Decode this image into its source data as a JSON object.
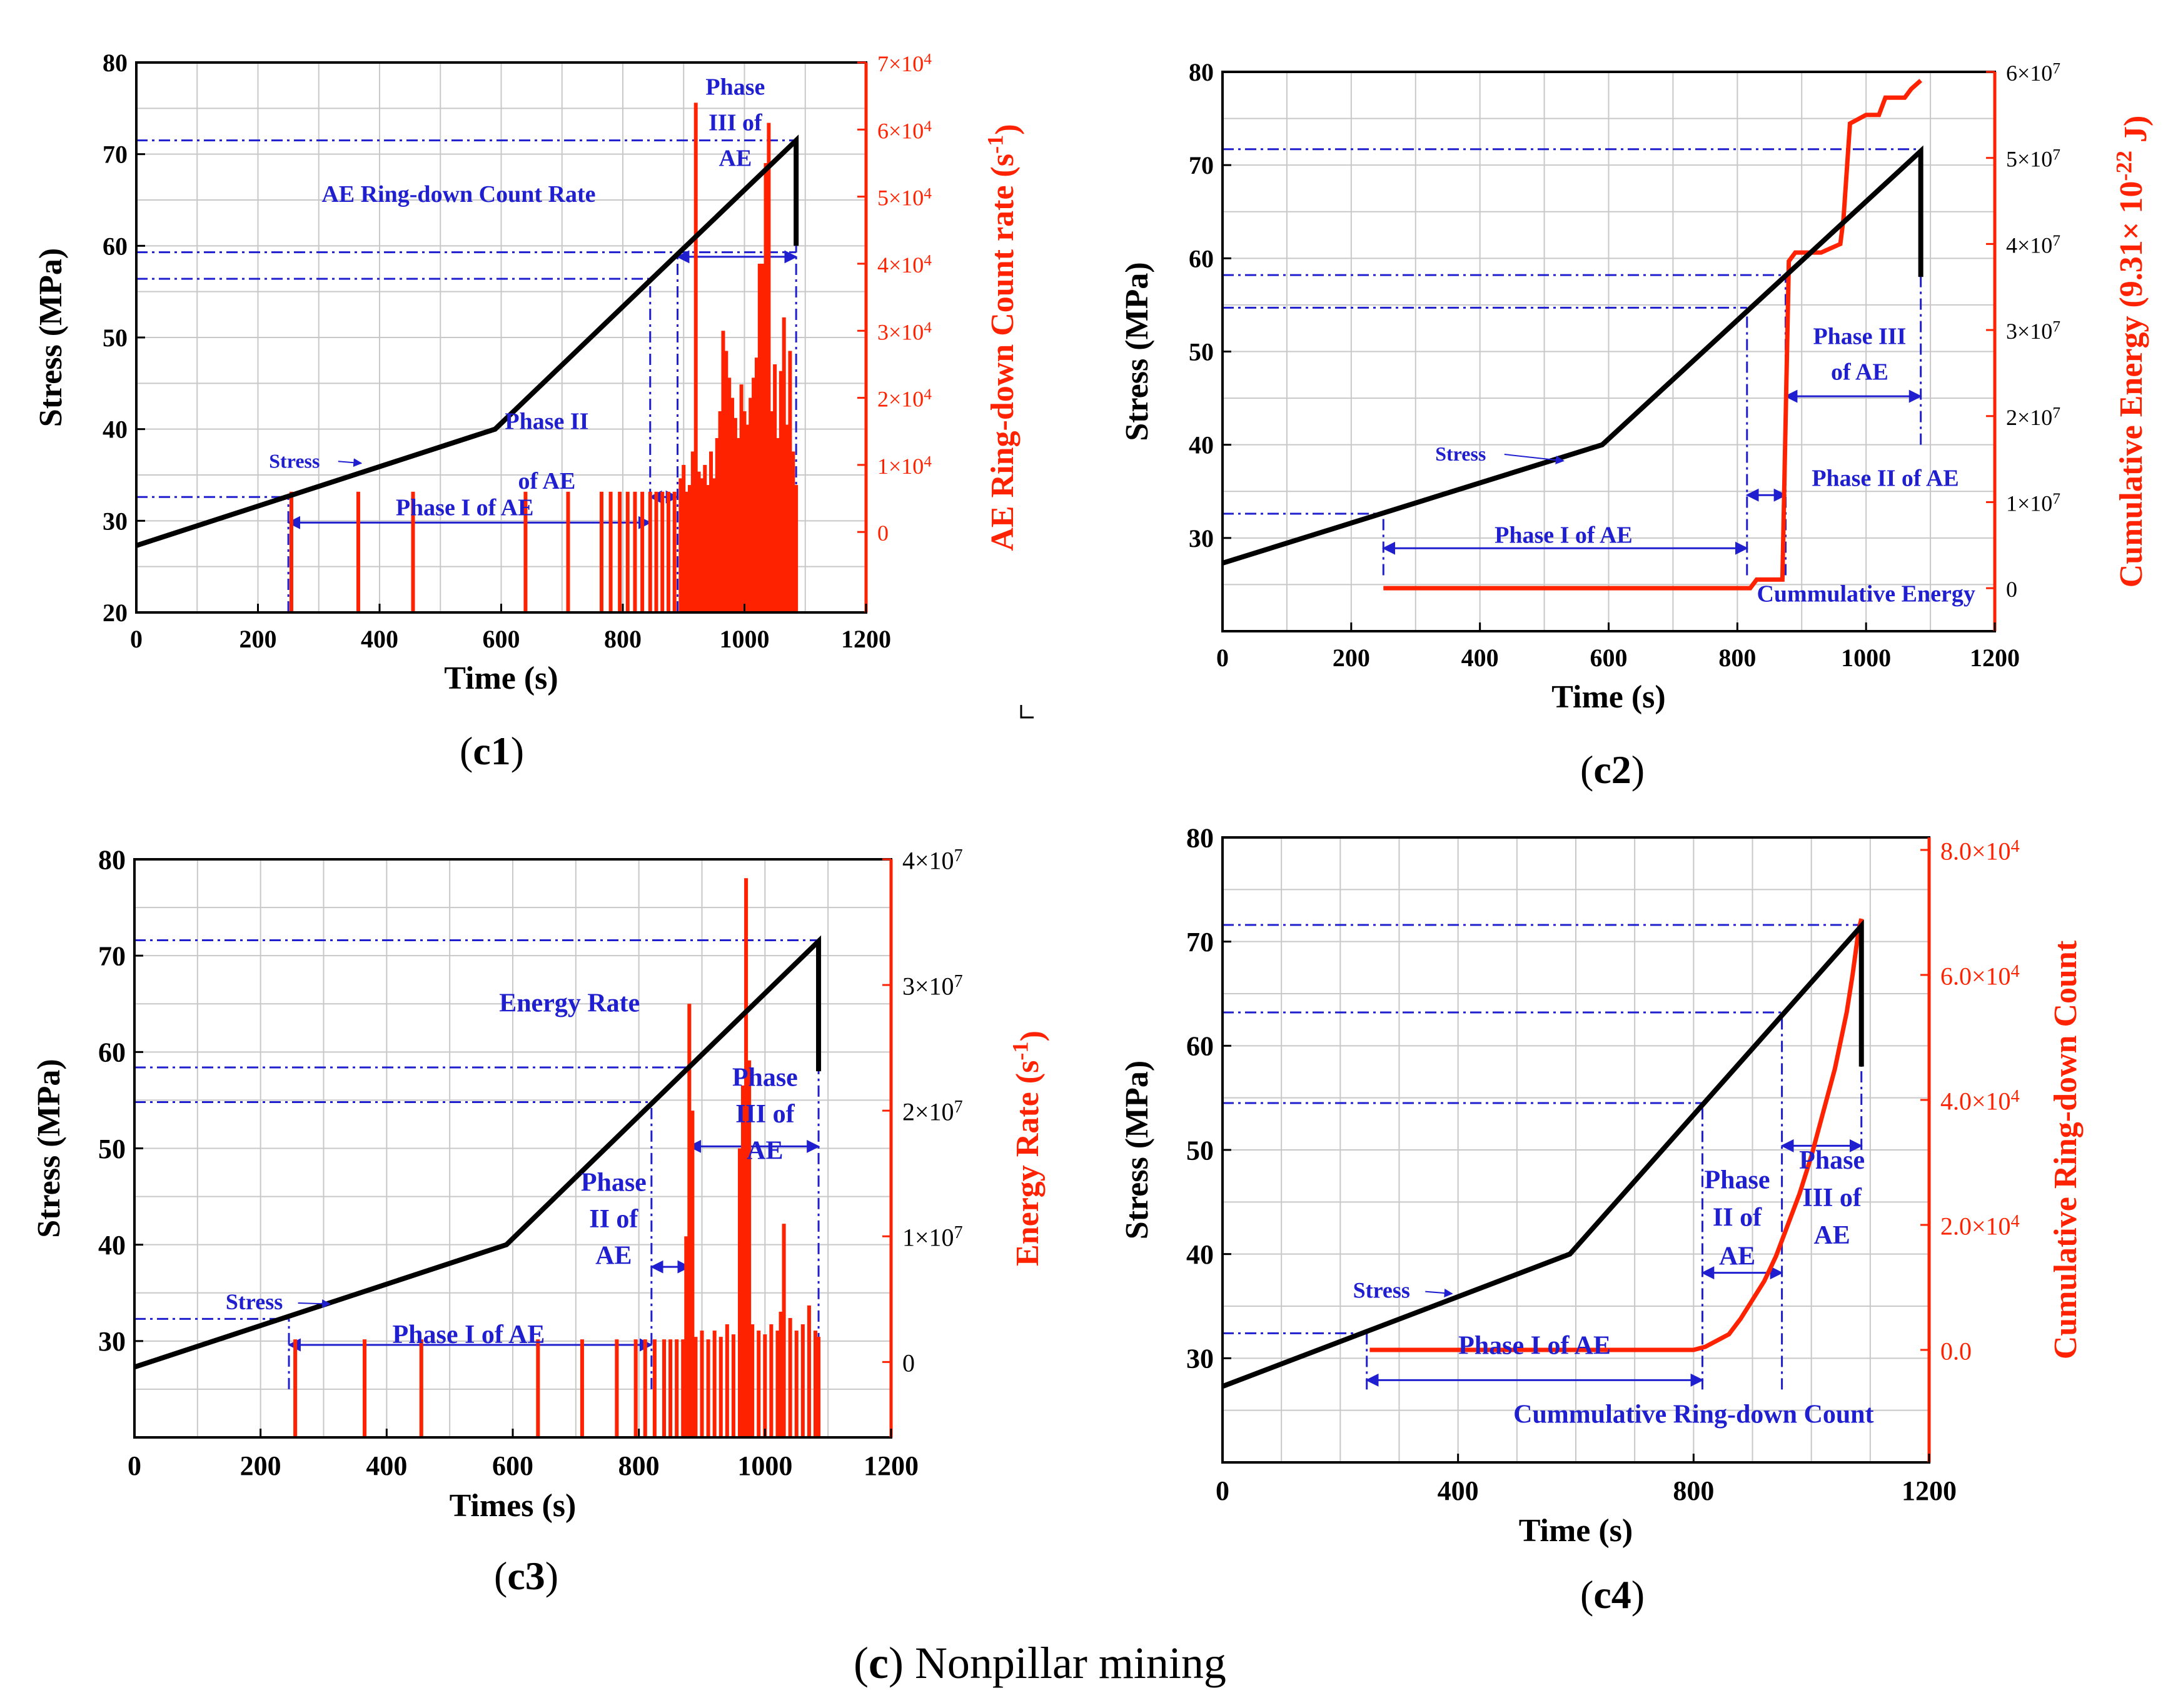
{
  "figure": {
    "caption_letter": "c",
    "caption_text": " Nonpillar mining",
    "panel_labels": [
      {
        "letter": "c1"
      },
      {
        "letter": "c2"
      },
      {
        "letter": "c3"
      },
      {
        "letter": "c4"
      }
    ]
  },
  "colors": {
    "stress": "#000000",
    "ae": "#ff2200",
    "annot": "#1f1fd0",
    "grid": "#c8c8c8"
  },
  "chart_data": [
    {
      "id": "c1",
      "type": "bar+line",
      "xlabel": "Time (s)",
      "ylabel": "Stress (MPa)",
      "y2label": "AE Ring-down Count rate (s^-1)",
      "xlim": [
        0,
        1200
      ],
      "ylim": [
        20,
        80
      ],
      "y2lim": [
        -12000,
        70000
      ],
      "xticks": [
        "0",
        "200",
        "400",
        "600",
        "800",
        "1000",
        "1200"
      ],
      "yticks": [
        "20",
        "30",
        "40",
        "50",
        "60",
        "70",
        "80"
      ],
      "y2ticks": [
        "0",
        "1×10^4",
        "2×10^4",
        "3×10^4",
        "4×10^4",
        "5×10^4",
        "6×10^4",
        "7×10^4"
      ],
      "stress": {
        "t": [
          0,
          590,
          1085,
          1085
        ],
        "s": [
          27.3,
          40,
          71.5,
          60
        ]
      },
      "ae_spikes": [
        [
          255,
          6000
        ],
        [
          365,
          6000
        ],
        [
          455,
          6000
        ],
        [
          640,
          6000
        ],
        [
          710,
          6000
        ],
        [
          765,
          6000
        ],
        [
          780,
          6000
        ],
        [
          795,
          6000
        ],
        [
          808,
          6000
        ],
        [
          820,
          6000
        ],
        [
          832,
          6000
        ],
        [
          845,
          6000
        ],
        [
          855,
          6000
        ],
        [
          865,
          6000
        ],
        [
          875,
          6000
        ],
        [
          885,
          6000
        ],
        [
          895,
          8000
        ],
        [
          900,
          10000
        ],
        [
          905,
          6000
        ],
        [
          910,
          7000
        ],
        [
          915,
          12000
        ],
        [
          920,
          64000
        ],
        [
          925,
          9000
        ],
        [
          930,
          8000
        ],
        [
          935,
          10000
        ],
        [
          940,
          7000
        ],
        [
          945,
          12000
        ],
        [
          950,
          8000
        ],
        [
          955,
          14000
        ],
        [
          960,
          18000
        ],
        [
          965,
          30000
        ],
        [
          970,
          27000
        ],
        [
          975,
          23000
        ],
        [
          980,
          20000
        ],
        [
          985,
          17000
        ],
        [
          990,
          14000
        ],
        [
          995,
          22000
        ],
        [
          1000,
          18000
        ],
        [
          1005,
          16000
        ],
        [
          1010,
          20000
        ],
        [
          1015,
          23000
        ],
        [
          1020,
          26000
        ],
        [
          1025,
          40000
        ],
        [
          1030,
          40000
        ],
        [
          1035,
          55000
        ],
        [
          1040,
          61000
        ],
        [
          1045,
          18000
        ],
        [
          1050,
          25000
        ],
        [
          1055,
          14000
        ],
        [
          1060,
          24000
        ],
        [
          1065,
          32000
        ],
        [
          1070,
          16000
        ],
        [
          1075,
          27000
        ],
        [
          1080,
          12000
        ],
        [
          1085,
          7000
        ]
      ],
      "annotations": {
        "stress_label": "Stress",
        "series_label": "AE Ring-down Count Rate",
        "phase1": "Phase I of AE",
        "phase2": [
          "Phase II",
          "of AE"
        ],
        "phase3": [
          "Phase",
          "III of",
          "AE"
        ]
      }
    },
    {
      "id": "c2",
      "type": "line",
      "xlabel": "Time (s)",
      "ylabel": "Stress (MPa)",
      "y2label": "Cumulative Energy (9.31× 10^-22 J)",
      "xlim": [
        0,
        1200
      ],
      "ylim": [
        20,
        80
      ],
      "y2lim": [
        -5000000,
        60000000
      ],
      "xticks": [
        "0",
        "200",
        "400",
        "600",
        "800",
        "1000",
        "1200"
      ],
      "yticks": [
        "30",
        "40",
        "50",
        "60",
        "70",
        "80"
      ],
      "y2ticks": [
        "0",
        "1×10^7",
        "2×10^7",
        "3×10^7",
        "4×10^7",
        "5×10^7",
        "6×10^7"
      ],
      "stress": {
        "t": [
          0,
          590,
          1085,
          1085
        ],
        "s": [
          27.3,
          40,
          71.5,
          58
        ]
      },
      "cum_energy": {
        "t": [
          250,
          820,
          830,
          870,
          880,
          890,
          930,
          960,
          965,
          975,
          1000,
          1020,
          1030,
          1060,
          1070,
          1085
        ],
        "e": [
          0,
          0,
          1000000,
          1000000,
          38000000,
          39000000,
          39000000,
          40000000,
          43000000,
          54000000,
          55000000,
          55000000,
          57000000,
          57000000,
          58000000,
          59000000
        ]
      },
      "annotations": {
        "stress_label": "Stress",
        "series_label": "Cummulative Energy",
        "phase1": "Phase I of  AE",
        "phase2": [
          "Phase II of AE"
        ],
        "phase3": [
          "Phase III",
          "of AE"
        ]
      }
    },
    {
      "id": "c3",
      "type": "bar+line",
      "xlabel": "Times (s)",
      "ylabel": "Stress (MPa)",
      "y2label": "Energy Rate (s^-1)",
      "xlim": [
        0,
        1200
      ],
      "ylim": [
        20,
        80
      ],
      "y2lim": [
        -6000000,
        40000000
      ],
      "xticks": [
        "0",
        "200",
        "400",
        "600",
        "800",
        "1000",
        "1200"
      ],
      "yticks": [
        "30",
        "40",
        "50",
        "60",
        "70",
        "80"
      ],
      "y2ticks": [
        "0",
        "1×10^7",
        "2×10^7",
        "3×10^7",
        "4×10^7"
      ],
      "stress": {
        "t": [
          0,
          590,
          1085,
          1085
        ],
        "s": [
          27.3,
          40,
          71.5,
          58
        ]
      },
      "ae_spikes": [
        [
          255,
          1800000
        ],
        [
          365,
          1800000
        ],
        [
          455,
          1800000
        ],
        [
          640,
          1800000
        ],
        [
          710,
          1800000
        ],
        [
          765,
          1800000
        ],
        [
          795,
          1800000
        ],
        [
          810,
          1800000
        ],
        [
          825,
          1800000
        ],
        [
          840,
          1800000
        ],
        [
          850,
          1800000
        ],
        [
          860,
          1800000
        ],
        [
          870,
          1800000
        ],
        [
          875,
          10000000
        ],
        [
          880,
          28500000
        ],
        [
          885,
          20000000
        ],
        [
          890,
          2000000
        ],
        [
          900,
          2500000
        ],
        [
          910,
          1800000
        ],
        [
          920,
          2500000
        ],
        [
          930,
          2000000
        ],
        [
          940,
          3000000
        ],
        [
          950,
          2200000
        ],
        [
          960,
          17000000
        ],
        [
          965,
          22000000
        ],
        [
          970,
          38500000
        ],
        [
          975,
          24000000
        ],
        [
          980,
          3000000
        ],
        [
          990,
          2500000
        ],
        [
          1000,
          2200000
        ],
        [
          1010,
          3000000
        ],
        [
          1020,
          2500000
        ],
        [
          1025,
          4000000
        ],
        [
          1030,
          11000000
        ],
        [
          1040,
          3500000
        ],
        [
          1050,
          2500000
        ],
        [
          1060,
          3000000
        ],
        [
          1070,
          4500000
        ],
        [
          1080,
          2500000
        ],
        [
          1085,
          2000000
        ]
      ],
      "annotations": {
        "stress_label": "Stress",
        "series_label": "Energy Rate",
        "phase1": "Phase I of AE",
        "phase2": [
          "Phase",
          "II of",
          "AE"
        ],
        "phase3": [
          "Phase",
          "III of",
          "AE"
        ]
      }
    },
    {
      "id": "c4",
      "type": "line",
      "xlabel": "Time (s)",
      "ylabel": "Stress (MPa)",
      "y2label": "Cumulative Ring-down Count",
      "xlim": [
        0,
        1200
      ],
      "ylim": [
        20,
        80
      ],
      "y2lim": [
        -18000,
        82000
      ],
      "xticks": [
        "0",
        "400",
        "800",
        "1200"
      ],
      "yticks": [
        "30",
        "40",
        "50",
        "60",
        "70",
        "80"
      ],
      "y2ticks": [
        "0.0",
        "2.0×10^4",
        "4.0×10^4",
        "6.0×10^4",
        "8.0×10^4"
      ],
      "stress": {
        "t": [
          0,
          590,
          1085,
          1085
        ],
        "s": [
          27.3,
          40,
          71.5,
          58
        ]
      },
      "cum_count": {
        "t": [
          250,
          800,
          820,
          840,
          860,
          880,
          900,
          920,
          940,
          960,
          980,
          1000,
          1020,
          1040,
          1060,
          1070,
          1080,
          1085
        ],
        "c": [
          0,
          0,
          500,
          1500,
          2500,
          5000,
          8000,
          11000,
          15000,
          20000,
          25000,
          31000,
          38000,
          45000,
          54000,
          60000,
          67000,
          69000
        ]
      },
      "annotations": {
        "stress_label": "Stress",
        "series_label": "Cummulative Ring-down Count",
        "phase1": "Phase I of AE",
        "phase2": [
          "Phase",
          "II of",
          "AE"
        ],
        "phase3": [
          "Phase",
          "III of",
          "AE"
        ]
      }
    }
  ]
}
